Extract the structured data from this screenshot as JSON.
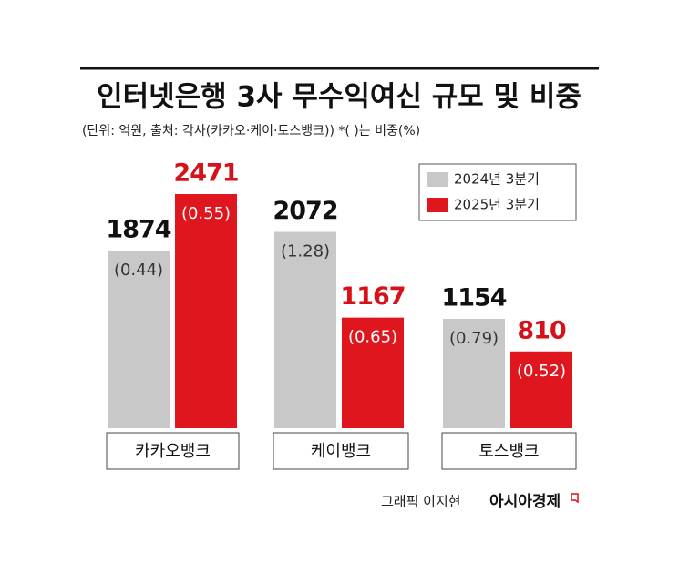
{
  "chart_data": {
    "type": "bar",
    "title": "인터넷은행 3사 무수익여신 규모 및 비중",
    "subtitle": "(단위: 억원, 출처: 각사(카카오·케이·토스뱅크))   *(  )는 비중(%)",
    "categories": [
      "카카오뱅크",
      "케이뱅크",
      "토스뱅크"
    ],
    "series": [
      {
        "name": "2024년 3분기",
        "color": "#c8c8c8",
        "label_color": "#111111",
        "values": [
          1874,
          2072,
          1154
        ],
        "shares": [
          "(0.44)",
          "(1.28)",
          "(0.79)"
        ]
      },
      {
        "name": "2025년 3분기",
        "color": "#e0161e",
        "label_color": "#d7101a",
        "values": [
          2471,
          1167,
          810
        ],
        "shares": [
          "(0.55)",
          "(0.65)",
          "(0.52)"
        ]
      }
    ],
    "ylim": [
      0,
      2500
    ],
    "credit": "그래픽 이지현",
    "publisher": "아시아경제"
  }
}
